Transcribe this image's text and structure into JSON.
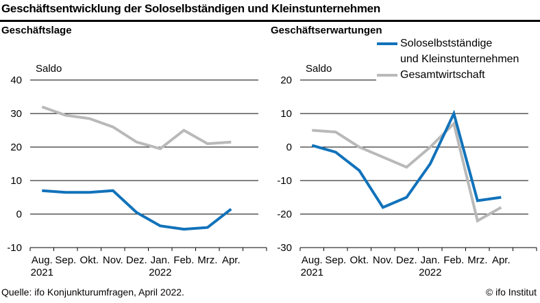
{
  "title": "Geschäftsentwicklung der Soloselbständigen und Kleinstunternehmen",
  "footer": {
    "source": "Quelle: ifo Konjunkturumfragen, April 2022.",
    "copyright": "© ifo Institut"
  },
  "colors": {
    "primary": "#1172ba",
    "secondary": "#b9b9b9",
    "axis": "#000000"
  },
  "legend": {
    "items": [
      {
        "label": "Soloselbstständige und Kleinstunternehmen",
        "label_lines": [
          "Soloselbstständige",
          "und Kleinstunternehmen"
        ],
        "color": "#1172ba"
      },
      {
        "label": "Gesamtwirtschaft",
        "label_lines": [
          "Gesamtwirtschaft"
        ],
        "color": "#b9b9b9"
      }
    ]
  },
  "chart_data": [
    {
      "type": "line",
      "title": "Geschäftslage",
      "ylabel": "Saldo",
      "ylim": [
        -10,
        40
      ],
      "yticks": [
        40,
        30,
        20,
        10,
        0,
        -10
      ],
      "grid": "horizontal",
      "x": [
        "Aug.",
        "Sep.",
        "Okt.",
        "Nov.",
        "Dez.",
        "Jan.",
        "Feb.",
        "Mrz.",
        "Apr."
      ],
      "x_years": {
        "0": "2021",
        "5": "2022"
      },
      "series": [
        {
          "name": "Soloselbstständige und Kleinstunternehmen",
          "color": "#1172ba",
          "values": [
            7,
            6.5,
            6.5,
            7,
            0.5,
            -3.5,
            -4.5,
            -4,
            1.5
          ]
        },
        {
          "name": "Gesamtwirtschaft",
          "color": "#b9b9b9",
          "values": [
            32,
            29.5,
            28.5,
            26,
            21.5,
            19.5,
            25,
            21,
            21.5
          ]
        }
      ]
    },
    {
      "type": "line",
      "title": "Geschäftserwartungen",
      "ylabel": "Saldo",
      "ylim": [
        -30,
        20
      ],
      "yticks": [
        20,
        10,
        0,
        -10,
        -20,
        -30
      ],
      "grid": "horizontal",
      "x": [
        "Aug.",
        "Sep.",
        "Okt.",
        "Nov.",
        "Dez.",
        "Jan.",
        "Feb.",
        "Mrz.",
        "Apr."
      ],
      "x_years": {
        "0": "2021",
        "5": "2022"
      },
      "series": [
        {
          "name": "Soloselbstständige und Kleinstunternehmen",
          "color": "#1172ba",
          "values": [
            0.5,
            -1.5,
            -7,
            -18,
            -15,
            -5,
            10,
            -16,
            -15
          ]
        },
        {
          "name": "Gesamtwirtschaft",
          "color": "#b9b9b9",
          "values": [
            5,
            4.5,
            0,
            -3,
            -6,
            0,
            7,
            -22,
            -18
          ]
        }
      ]
    }
  ]
}
